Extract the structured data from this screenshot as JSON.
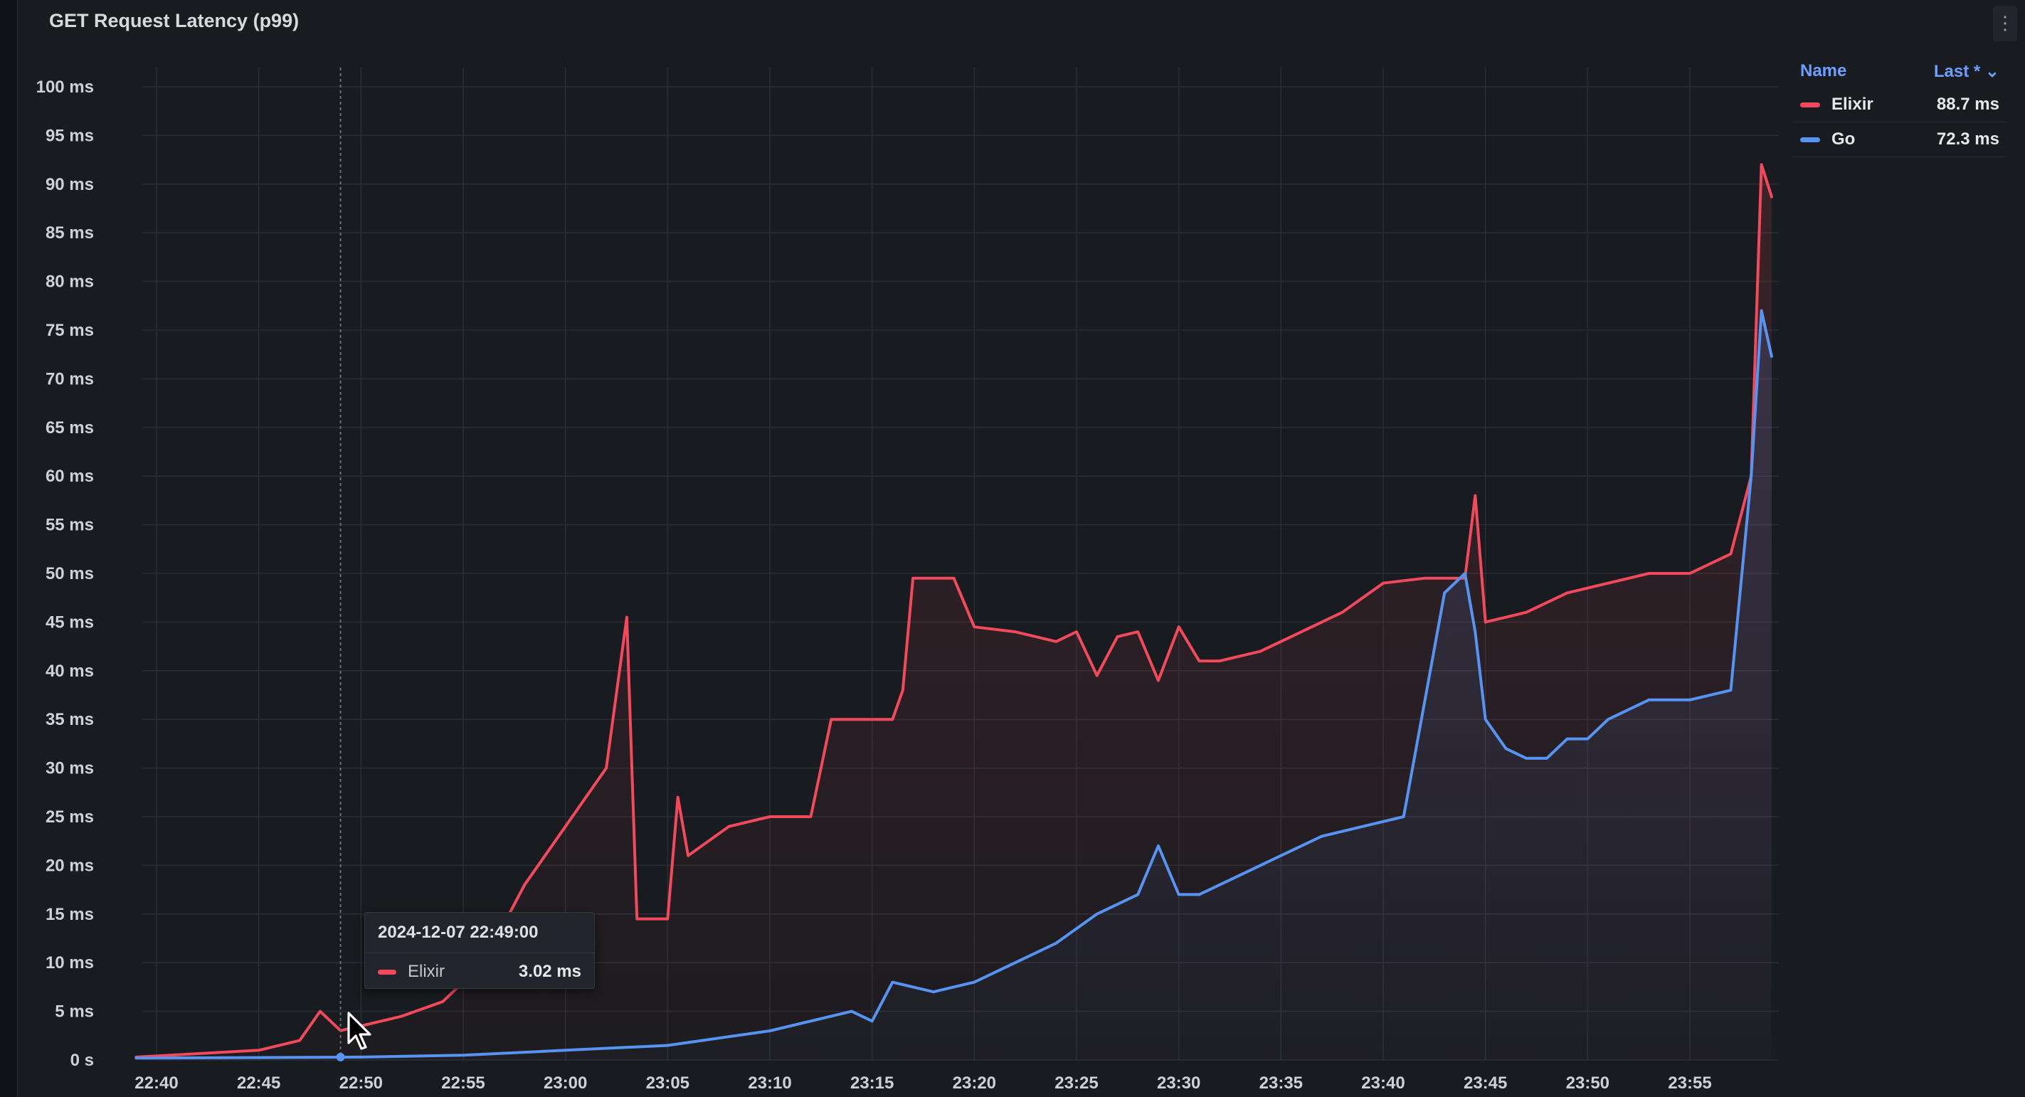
{
  "panel": {
    "title": "GET Request Latency (p99)",
    "menu_icon": "kebab-menu-icon"
  },
  "legend": {
    "name_header": "Name",
    "value_header": "Last * ⌄",
    "items": [
      {
        "name": "Elixir",
        "last": "88.7 ms",
        "color": "#f2495c"
      },
      {
        "name": "Go",
        "last": "72.3 ms",
        "color": "#5794f2"
      }
    ]
  },
  "tooltip": {
    "time": "2024-12-07 22:49:00",
    "series": "Elixir",
    "value": "3.02 ms",
    "color": "#f2495c"
  },
  "chart_data": {
    "type": "line",
    "title": "GET Request Latency (p99)",
    "y_unit": "ms",
    "ylim": [
      0,
      100
    ],
    "y_ticks": [
      "0 s",
      "5 ms",
      "10 ms",
      "15 ms",
      "20 ms",
      "25 ms",
      "30 ms",
      "35 ms",
      "40 ms",
      "45 ms",
      "50 ms",
      "55 ms",
      "60 ms",
      "65 ms",
      "70 ms",
      "75 ms",
      "80 ms",
      "85 ms",
      "90 ms",
      "95 ms",
      "100 ms"
    ],
    "x_ticks": [
      "22:40",
      "22:45",
      "22:50",
      "22:55",
      "23:00",
      "23:05",
      "23:10",
      "23:15",
      "23:20",
      "23:25",
      "23:30",
      "23:35",
      "23:40",
      "23:45",
      "23:50",
      "23:55"
    ],
    "grid": true,
    "legend_position": "right",
    "series": [
      {
        "name": "Elixir",
        "color": "#f2495c",
        "x": [
          "22:39",
          "22:45",
          "22:47",
          "22:48",
          "22:49",
          "22:50",
          "22:52",
          "22:54",
          "22:56",
          "22:58",
          "23:00",
          "23:02",
          "23:03",
          "23:03:30",
          "23:04",
          "23:05",
          "23:05:30",
          "23:06",
          "23:08",
          "23:10",
          "23:12",
          "23:13",
          "23:14",
          "23:16",
          "23:16:30",
          "23:17",
          "23:19",
          "23:20",
          "23:22",
          "23:24",
          "23:25",
          "23:26",
          "23:27",
          "23:28",
          "23:29",
          "23:30",
          "23:31",
          "23:32",
          "23:34",
          "23:36",
          "23:38",
          "23:40",
          "23:42",
          "23:44",
          "23:44:30",
          "23:45",
          "23:47",
          "23:49",
          "23:51",
          "23:53",
          "23:55",
          "23:57",
          "23:58",
          "23:58:30",
          "23:59"
        ],
        "y": [
          0.3,
          1,
          2,
          5,
          3.02,
          3.5,
          4.5,
          6,
          10,
          18,
          24,
          30,
          45.5,
          14.5,
          14.5,
          14.5,
          27,
          21,
          24,
          25,
          25,
          35,
          35,
          35,
          38,
          49.5,
          49.5,
          44.5,
          44,
          43,
          44,
          39.5,
          43.5,
          44,
          39,
          44.5,
          41,
          41,
          42,
          44,
          46,
          49,
          49.5,
          49.5,
          58,
          45,
          46,
          48,
          49,
          50,
          50,
          52,
          60,
          92,
          88.7
        ]
      },
      {
        "name": "Go",
        "color": "#5794f2",
        "x": [
          "22:39",
          "22:50",
          "22:55",
          "23:00",
          "23:05",
          "23:10",
          "23:14",
          "23:15",
          "23:16",
          "23:18",
          "23:20",
          "23:22",
          "23:24",
          "23:26",
          "23:28",
          "23:29",
          "23:30",
          "23:31",
          "23:33",
          "23:35",
          "23:37",
          "23:39",
          "23:41",
          "23:43",
          "23:44",
          "23:44:30",
          "23:45",
          "23:46",
          "23:47",
          "23:48",
          "23:49",
          "23:50",
          "23:51",
          "23:53",
          "23:55",
          "23:57",
          "23:58",
          "23:58:30",
          "23:59"
        ],
        "y": [
          0.2,
          0.3,
          0.5,
          1,
          1.5,
          3,
          5,
          4,
          8,
          7,
          8,
          10,
          12,
          15,
          17,
          22,
          17,
          17,
          19,
          21,
          23,
          24,
          25,
          48,
          50,
          44,
          35,
          32,
          31,
          31,
          33,
          33,
          35,
          37,
          37,
          38,
          60,
          77,
          72.3
        ]
      }
    ]
  }
}
